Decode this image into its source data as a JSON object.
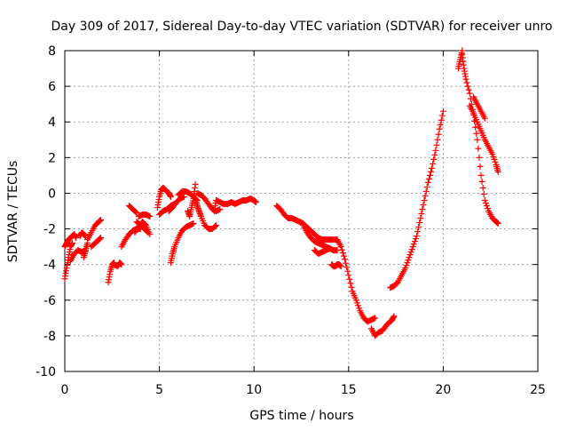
{
  "chart_data": {
    "type": "scatter",
    "title": "Day 309 of 2017, Sidereal Day-to-day VTEC variation (SDTVAR) for receiver unro",
    "xlabel": "GPS time / hours",
    "ylabel": "SDTVAR / TECUs",
    "xlim": [
      0,
      25
    ],
    "ylim": [
      -10,
      8
    ],
    "xticks": [
      0,
      5,
      10,
      15,
      20,
      25
    ],
    "yticks": [
      -10,
      -8,
      -6,
      -4,
      -2,
      0,
      2,
      4,
      6,
      8
    ],
    "xtick_labels": [
      "0",
      "5",
      "10",
      "15",
      "20",
      "25"
    ],
    "ytick_labels": [
      "-10",
      "-8",
      "-6",
      "-4",
      "-2",
      "0",
      "2",
      "4",
      "6",
      "8"
    ],
    "grid": true,
    "marker": "+",
    "color": "#ff0000",
    "series": [
      {
        "name": "s1",
        "x": [
          0.0,
          0.1,
          0.2,
          0.3,
          0.4
        ],
        "y": [
          -4.8,
          -4.2,
          -3.6,
          -3.0,
          -2.8
        ]
      },
      {
        "name": "s2",
        "x": [
          0.0,
          0.1,
          0.2,
          0.3,
          0.4,
          0.5,
          0.6
        ],
        "y": [
          -3.0,
          -2.8,
          -2.6,
          -2.5,
          -2.4,
          -2.3,
          -2.5
        ]
      },
      {
        "name": "s3",
        "x": [
          0.3,
          0.5,
          0.7,
          0.9,
          1.1
        ],
        "y": [
          -3.8,
          -3.4,
          -3.2,
          -3.3,
          -3.2
        ]
      },
      {
        "name": "s4",
        "x": [
          0.8,
          0.9,
          1.0,
          1.1
        ],
        "y": [
          -2.4,
          -2.2,
          -2.3,
          -2.4
        ]
      },
      {
        "name": "s5",
        "x": [
          1.0,
          1.1,
          1.2
        ],
        "y": [
          -3.6,
          -3.2,
          -2.8
        ]
      },
      {
        "name": "s6",
        "x": [
          1.2,
          1.4,
          1.6,
          1.8,
          1.9
        ],
        "y": [
          -2.6,
          -2.2,
          -1.8,
          -1.6,
          -1.5
        ]
      },
      {
        "name": "s7",
        "x": [
          1.4,
          1.6,
          1.8,
          1.9
        ],
        "y": [
          -3.0,
          -2.8,
          -2.6,
          -2.5
        ]
      },
      {
        "name": "s8",
        "x": [
          2.3,
          2.4,
          2.5,
          2.6
        ],
        "y": [
          -5.0,
          -4.4,
          -4.0,
          -3.9
        ]
      },
      {
        "name": "s9",
        "x": [
          2.6,
          2.8,
          2.9,
          3.0
        ],
        "y": [
          -4.0,
          -4.1,
          -3.9,
          -4.0
        ]
      },
      {
        "name": "s10",
        "x": [
          3.0,
          3.2,
          3.4,
          3.6,
          3.8,
          4.0
        ],
        "y": [
          -3.0,
          -2.6,
          -2.3,
          -2.1,
          -2.0,
          -2.0
        ]
      },
      {
        "name": "s11",
        "x": [
          3.4,
          3.6,
          3.8
        ],
        "y": [
          -0.7,
          -0.9,
          -1.1
        ]
      },
      {
        "name": "s12",
        "x": [
          3.9,
          4.1,
          4.3,
          4.5
        ],
        "y": [
          -1.3,
          -1.2,
          -1.2,
          -1.3
        ]
      },
      {
        "name": "s13",
        "x": [
          3.7,
          3.9,
          4.1,
          4.3,
          4.5
        ],
        "y": [
          -2.2,
          -1.9,
          -1.6,
          -1.8,
          -2.3
        ]
      },
      {
        "name": "s14",
        "x": [
          3.8,
          4.0,
          4.2,
          4.4
        ],
        "y": [
          -1.6,
          -1.8,
          -2.0,
          -2.2
        ]
      },
      {
        "name": "s15",
        "x": [
          4.9,
          5.0,
          5.1,
          5.2,
          5.3,
          5.4,
          5.5,
          5.6
        ],
        "y": [
          -0.8,
          -0.2,
          0.2,
          0.3,
          0.2,
          0.1,
          0.0,
          -0.2
        ]
      },
      {
        "name": "s16",
        "x": [
          5.0,
          5.2,
          5.4,
          5.6,
          5.8
        ],
        "y": [
          -1.2,
          -1.0,
          -0.9,
          -0.7,
          -0.6
        ]
      },
      {
        "name": "s17",
        "x": [
          5.5,
          5.7,
          5.9,
          6.1,
          6.3
        ],
        "y": [
          -1.0,
          -0.8,
          -0.5,
          -0.3,
          -0.2
        ]
      },
      {
        "name": "s18",
        "x": [
          6.0,
          6.2,
          6.4,
          6.6,
          6.8,
          7.0
        ],
        "y": [
          -0.1,
          0.1,
          0.1,
          0.0,
          -0.2,
          -0.4
        ]
      },
      {
        "name": "s19",
        "x": [
          5.6,
          5.7,
          5.8,
          6.0,
          6.2,
          6.4,
          6.6,
          6.8
        ],
        "y": [
          -3.9,
          -3.4,
          -3.0,
          -2.5,
          -2.1,
          -1.9,
          -1.8,
          -1.7
        ]
      },
      {
        "name": "s20",
        "x": [
          6.5,
          6.6,
          6.7,
          6.8,
          6.9
        ],
        "y": [
          -1.0,
          -1.3,
          -0.8,
          -0.3,
          0.5
        ]
      },
      {
        "name": "s21",
        "x": [
          6.9,
          7.0,
          7.1,
          7.2,
          7.4,
          7.6,
          7.8,
          8.0
        ],
        "y": [
          -0.3,
          -0.7,
          -1.0,
          -1.3,
          -1.8,
          -2.0,
          -2.0,
          -1.8
        ]
      },
      {
        "name": "s22",
        "x": [
          7.0,
          7.2,
          7.4,
          7.6,
          7.8,
          8.0,
          8.2
        ],
        "y": [
          0.0,
          -0.1,
          -0.3,
          -0.6,
          -0.9,
          -1.0,
          -0.9
        ]
      },
      {
        "name": "s23",
        "x": [
          7.9,
          8.0,
          8.2,
          8.4,
          8.6,
          8.8,
          9.0,
          9.2,
          9.4,
          9.6,
          9.8,
          10.0,
          10.1
        ],
        "y": [
          -1.0,
          -0.4,
          -0.5,
          -0.6,
          -0.6,
          -0.5,
          -0.6,
          -0.5,
          -0.4,
          -0.4,
          -0.3,
          -0.4,
          -0.5
        ]
      },
      {
        "name": "s24",
        "x": [
          11.2,
          11.4,
          11.6,
          11.8,
          12.0,
          12.2,
          12.4,
          12.6,
          12.8,
          13.0,
          13.2,
          13.4,
          13.6,
          13.8,
          14.0,
          14.2,
          14.4
        ],
        "y": [
          -0.7,
          -0.9,
          -1.2,
          -1.4,
          -1.4,
          -1.5,
          -1.6,
          -1.7,
          -1.9,
          -2.1,
          -2.3,
          -2.5,
          -2.6,
          -2.6,
          -2.6,
          -2.6,
          -2.6
        ]
      },
      {
        "name": "s25",
        "x": [
          12.6,
          12.8,
          13.0,
          13.2,
          13.4,
          13.6,
          13.8,
          14.0,
          14.2,
          14.4
        ],
        "y": [
          -1.8,
          -2.2,
          -2.5,
          -2.7,
          -2.8,
          -2.9,
          -3.0,
          -3.1,
          -3.2,
          -3.2
        ]
      },
      {
        "name": "s26",
        "x": [
          13.2,
          13.4,
          13.6,
          13.8,
          14.0
        ],
        "y": [
          -3.2,
          -3.4,
          -3.3,
          -3.2,
          -3.1
        ]
      },
      {
        "name": "s27",
        "x": [
          14.1,
          14.2,
          14.3,
          14.4,
          14.5,
          14.6
        ],
        "y": [
          -4.0,
          -4.1,
          -4.1,
          -4.0,
          -4.0,
          -4.1
        ]
      },
      {
        "name": "s28",
        "x": [
          14.4,
          14.6,
          14.8,
          15.0,
          15.2,
          15.4,
          15.6,
          15.8,
          16.0,
          16.2,
          16.4
        ],
        "y": [
          -2.6,
          -3.0,
          -3.7,
          -4.6,
          -5.5,
          -6.0,
          -6.6,
          -7.0,
          -7.2,
          -7.1,
          -7.0
        ]
      },
      {
        "name": "s29",
        "x": [
          16.2,
          16.4,
          16.6,
          16.8,
          17.0,
          17.2,
          17.3,
          17.4
        ],
        "y": [
          -7.6,
          -8.0,
          -7.8,
          -7.7,
          -7.4,
          -7.2,
          -7.1,
          -6.9
        ]
      },
      {
        "name": "s30",
        "x": [
          17.2,
          17.4,
          17.6,
          17.8,
          18.0,
          18.2,
          18.4,
          18.6,
          18.8,
          19.0,
          19.2,
          19.4,
          19.6,
          19.8,
          20.0
        ],
        "y": [
          -5.3,
          -5.2,
          -5.0,
          -4.6,
          -4.2,
          -3.6,
          -3.0,
          -2.4,
          -1.4,
          -0.4,
          0.6,
          1.4,
          2.4,
          3.6,
          4.6
        ]
      },
      {
        "name": "s31",
        "x": [
          20.8,
          20.9,
          21.0
        ],
        "y": [
          7.0,
          7.5,
          8.0
        ]
      },
      {
        "name": "s32",
        "x": [
          21.0,
          21.1,
          21.2,
          21.4,
          21.6,
          21.8,
          22.0,
          22.2,
          22.4,
          22.6,
          22.8,
          22.9
        ],
        "y": [
          7.8,
          7.0,
          6.4,
          5.6,
          4.4,
          3.0,
          1.0,
          -0.4,
          -1.0,
          -1.4,
          -1.6,
          -1.7
        ]
      },
      {
        "name": "s33",
        "x": [
          21.4,
          21.6,
          21.8,
          22.0,
          22.2,
          22.4,
          22.6,
          22.8,
          22.9
        ],
        "y": [
          4.9,
          4.5,
          4.0,
          3.5,
          3.0,
          2.6,
          2.2,
          1.6,
          1.2
        ]
      },
      {
        "name": "s34",
        "x": [
          21.6,
          21.8,
          22.0,
          22.2
        ],
        "y": [
          5.4,
          5.0,
          4.6,
          4.2
        ]
      }
    ]
  }
}
